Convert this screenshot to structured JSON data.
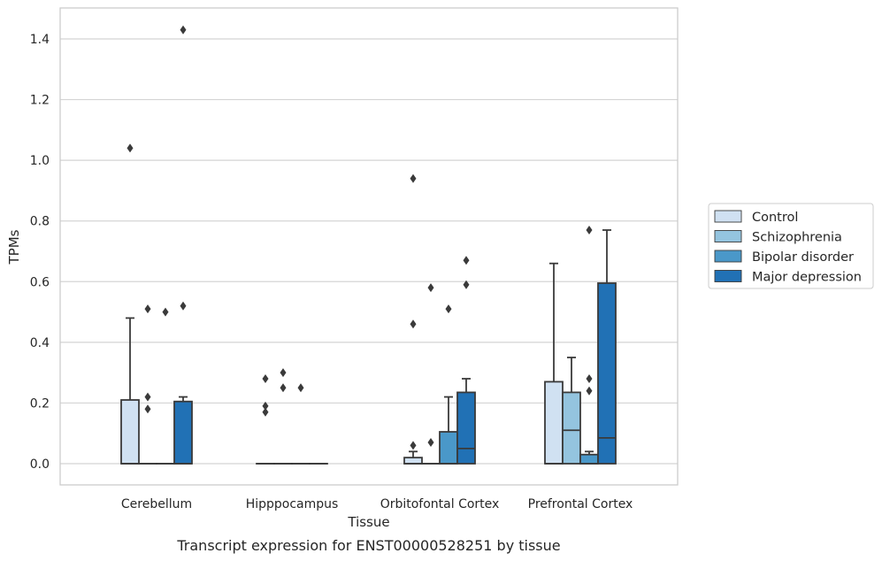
{
  "chart_data": {
    "type": "box",
    "title": "",
    "caption": "Transcript expression for ENST00000528251 by tissue",
    "xlabel": "Tissue",
    "ylabel": "TPMs",
    "ylim": [
      -0.07,
      1.5
    ],
    "yticks": [
      0.0,
      0.2,
      0.4,
      0.6,
      0.8,
      1.0,
      1.2,
      1.4
    ],
    "ytick_labels": [
      "0.0",
      "0.2",
      "0.4",
      "0.6",
      "0.8",
      "1.0",
      "1.2",
      "1.4"
    ],
    "grid": "horizontal",
    "legend_position": "right",
    "categories": [
      "Cerebellum",
      "Hipppocampus",
      "Orbitofontal Cortex",
      "Prefrontal Cortex"
    ],
    "series": [
      {
        "name": "Control",
        "color": "#d0e1f2",
        "boxes": [
          {
            "q1": 0.0,
            "median": 0.0,
            "q3": 0.21,
            "whisker_low": 0.0,
            "whisker_high": 0.48,
            "outliers": [
              1.04
            ]
          },
          {
            "q1": 0.0,
            "median": 0.0,
            "q3": 0.0,
            "whisker_low": 0.0,
            "whisker_high": 0.0,
            "outliers": [
              0.28,
              0.19,
              0.17
            ]
          },
          {
            "q1": 0.0,
            "median": 0.0,
            "q3": 0.02,
            "whisker_low": 0.0,
            "whisker_high": 0.04,
            "outliers": [
              0.94,
              0.46,
              0.06
            ]
          },
          {
            "q1": 0.0,
            "median": 0.0,
            "q3": 0.27,
            "whisker_low": 0.0,
            "whisker_high": 0.66,
            "outliers": []
          }
        ]
      },
      {
        "name": "Schizophrenia",
        "color": "#94c4df",
        "boxes": [
          {
            "q1": 0.0,
            "median": 0.0,
            "q3": 0.0,
            "whisker_low": 0.0,
            "whisker_high": 0.0,
            "outliers": [
              0.51,
              0.22,
              0.18
            ]
          },
          {
            "q1": 0.0,
            "median": 0.0,
            "q3": 0.0,
            "whisker_low": 0.0,
            "whisker_high": 0.0,
            "outliers": [
              0.3,
              0.25
            ]
          },
          {
            "q1": 0.0,
            "median": 0.0,
            "q3": 0.0,
            "whisker_low": 0.0,
            "whisker_high": 0.0,
            "outliers": [
              0.58,
              0.07
            ]
          },
          {
            "q1": 0.0,
            "median": 0.11,
            "q3": 0.235,
            "whisker_low": 0.0,
            "whisker_high": 0.35,
            "outliers": []
          }
        ]
      },
      {
        "name": "Bipolar disorder",
        "color": "#4a98c9",
        "boxes": [
          {
            "q1": 0.0,
            "median": 0.0,
            "q3": 0.0,
            "whisker_low": 0.0,
            "whisker_high": 0.0,
            "outliers": [
              0.5
            ]
          },
          {
            "q1": 0.0,
            "median": 0.0,
            "q3": 0.0,
            "whisker_low": 0.0,
            "whisker_high": 0.0,
            "outliers": [
              0.25
            ]
          },
          {
            "q1": 0.0,
            "median": 0.0,
            "q3": 0.105,
            "whisker_low": 0.0,
            "whisker_high": 0.22,
            "outliers": [
              0.51
            ]
          },
          {
            "q1": 0.0,
            "median": 0.0,
            "q3": 0.03,
            "whisker_low": 0.0,
            "whisker_high": 0.04,
            "outliers": [
              0.77,
              0.28,
              0.24
            ]
          }
        ]
      },
      {
        "name": "Major depression",
        "color": "#2171b5",
        "boxes": [
          {
            "q1": 0.0,
            "median": 0.0,
            "q3": 0.205,
            "whisker_low": 0.0,
            "whisker_high": 0.22,
            "outliers": [
              1.43,
              0.52
            ]
          },
          {
            "q1": 0.0,
            "median": 0.0,
            "q3": 0.0,
            "whisker_low": 0.0,
            "whisker_high": 0.0,
            "outliers": []
          },
          {
            "q1": 0.0,
            "median": 0.05,
            "q3": 0.235,
            "whisker_low": 0.0,
            "whisker_high": 0.28,
            "outliers": [
              0.67,
              0.59
            ]
          },
          {
            "q1": 0.0,
            "median": 0.085,
            "q3": 0.595,
            "whisker_low": 0.0,
            "whisker_high": 0.77,
            "outliers": []
          }
        ]
      }
    ]
  }
}
